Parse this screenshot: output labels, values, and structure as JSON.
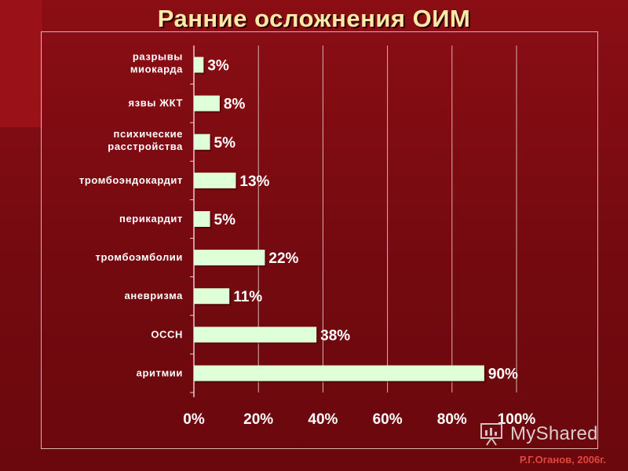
{
  "title": "Ранние осложнения ОИМ",
  "credit": "Р.Г.Оганов, 2006г.",
  "watermark": "MyShared",
  "colors": {
    "background": "#7a0c10",
    "bar": "#dfffd8",
    "title": "#ffe9a8",
    "credit": "#e0473c"
  },
  "chart_data": {
    "type": "bar",
    "orientation": "horizontal",
    "title": "Ранние осложнения ОИМ",
    "categories": [
      [
        "разрывы",
        "миокарда"
      ],
      [
        "язвы ЖКТ"
      ],
      [
        "психические",
        "расстройства"
      ],
      [
        "тромбоэндокардит"
      ],
      [
        "перикардит"
      ],
      [
        "тромбоэмболии"
      ],
      [
        "аневризма"
      ],
      [
        "ОССН"
      ],
      [
        "аритмии"
      ]
    ],
    "values": [
      3,
      8,
      5,
      13,
      5,
      22,
      11,
      38,
      90
    ],
    "value_labels": [
      "3%",
      "8%",
      "5%",
      "13%",
      "5%",
      "22%",
      "11%",
      "38%",
      "90%"
    ],
    "xlim": [
      0,
      100
    ],
    "xticks": [
      0,
      20,
      40,
      60,
      80,
      100
    ],
    "xtick_labels": [
      "0%",
      "20%",
      "40%",
      "60%",
      "80%",
      "100%"
    ],
    "xlabel": "",
    "ylabel": "",
    "grid": "vertical",
    "legend": "none"
  }
}
